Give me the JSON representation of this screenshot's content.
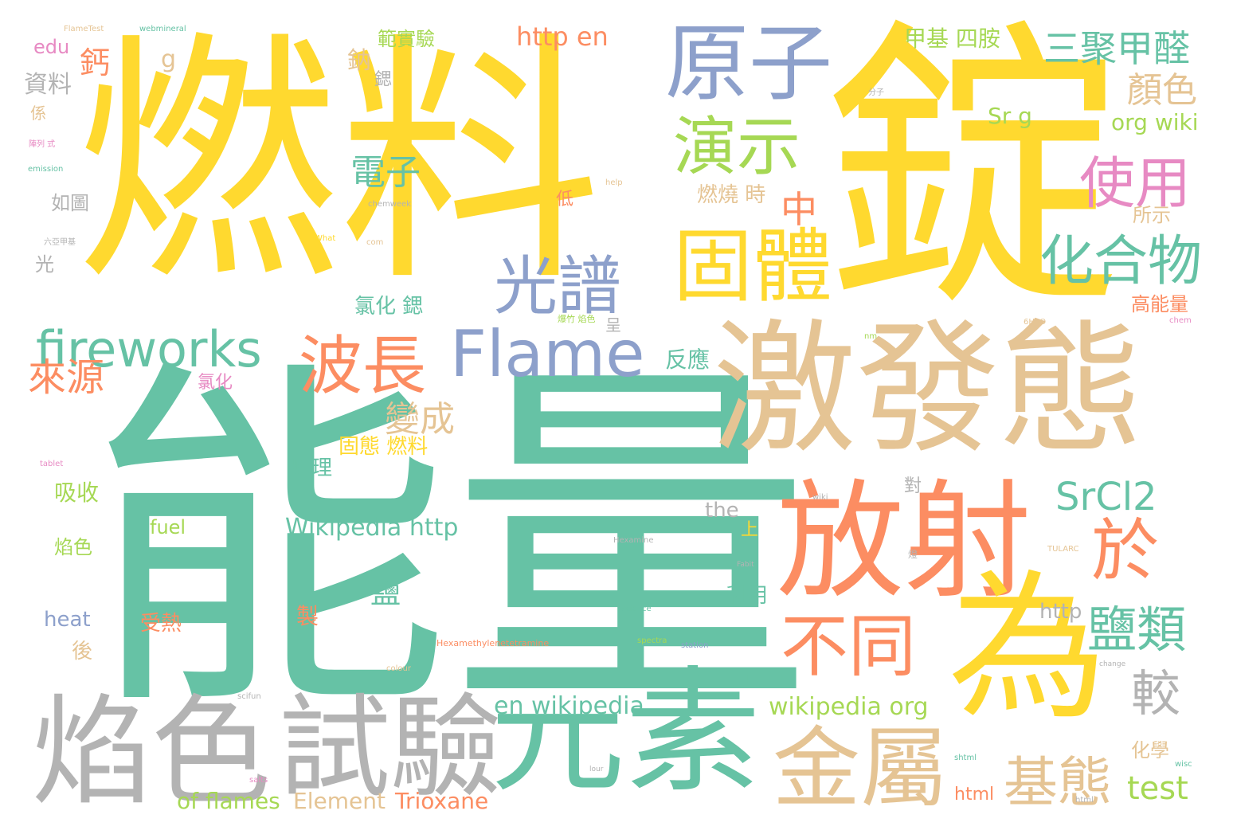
{
  "palette": {
    "yellow": "#ffd92f",
    "teal": "#66c2a5",
    "orange": "#fc8d62",
    "blue": "#8da0cb",
    "tan": "#e5c494",
    "green": "#a6d854",
    "pink": "#e78ac3",
    "gray": "#b3b3b3"
  },
  "words": [
    "燃料",
    "錠",
    "能量",
    "激發態",
    "放射",
    "元素",
    "為",
    "焰色",
    "試驗",
    "原子",
    "固體",
    "金屬",
    "Flame",
    "fireworks",
    "波長",
    "光譜",
    "演示",
    "不同",
    "於",
    "化合物",
    "使用",
    "鹽類",
    "三聚甲醛",
    "顏色",
    "SrCl2",
    "基態",
    "較",
    "電子",
    "來源",
    "變成",
    "中",
    "燃燒 時",
    "氯化 鍶",
    "固態 燃料",
    "Wikipedia http",
    "en wikipedia",
    "wikipedia org",
    "test",
    "http en",
    "甲基 四胺",
    "鈣",
    "g",
    "資料",
    "edu",
    "鈉",
    "鍶",
    "範實驗",
    "Sr g",
    "org wiki",
    "所示",
    "高能量",
    "反應",
    "氯化",
    "原理",
    "吸收",
    "fuel",
    "焰色",
    "heat",
    "受熱",
    "後",
    "鹽",
    "上",
    "利用",
    "製",
    "http",
    "the",
    "化學",
    "html",
    "Trioxane",
    "Element",
    "of flames",
    "如圖",
    "光",
    "低",
    "對",
    "呈",
    "Hexamethylenetetramine",
    "Hexamine",
    "FlameTest",
    "webmineral",
    "chemweek",
    "TULARC",
    "science",
    "spectra",
    "colour",
    "change",
    "help",
    "chem",
    "nm",
    "6H2O",
    "wiki",
    "What",
    "com",
    "emission",
    "tablet",
    "Fabit",
    "station",
    "html",
    "wisc",
    "scifun",
    "salts",
    "lour",
    "shtml",
    "六亞甲基",
    "係",
    "陣列 式",
    "爆竹 焰色",
    "燈",
    "分子"
  ]
}
